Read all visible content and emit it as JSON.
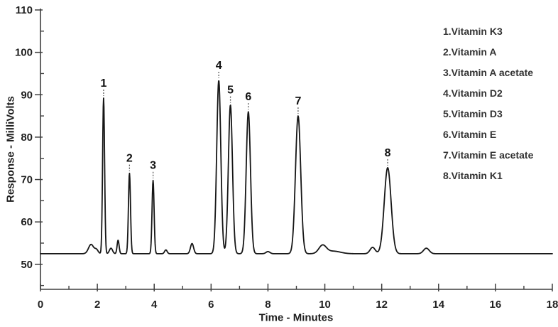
{
  "colors": {
    "background": "#ffffff",
    "trace": "#161616",
    "axis": "#3f3f3f",
    "tick_label": "#1f1f1f",
    "axis_title": "#1d1d1d",
    "peak_label": "#111111",
    "peak_dash": "#555555",
    "legend_text": "#333333"
  },
  "chart_data": {
    "type": "line",
    "subtype": "chromatogram",
    "title": "",
    "xlabel": "Time - Minutes",
    "ylabel": "Response - MilliVolts",
    "xlim": [
      0,
      18
    ],
    "ylim": [
      44.1,
      110
    ],
    "x_major_ticks": [
      0,
      2,
      4,
      6,
      8,
      10,
      12,
      14,
      16,
      18
    ],
    "x_minor_ticks": [
      1,
      3,
      5,
      7,
      9,
      11,
      13,
      15,
      17
    ],
    "y_major_ticks": [
      50,
      60,
      70,
      80,
      90,
      100,
      110
    ],
    "y_minor_ticks": [
      45,
      55,
      65,
      75,
      85,
      95,
      105
    ],
    "grid": "off",
    "baseline_mV": 52.5,
    "peaks": [
      {
        "label": "1",
        "name": "Vitamin K3",
        "rt_min": 2.22,
        "apex_mV": 89.2,
        "sigma_min": 0.035
      },
      {
        "label": "2",
        "name": "Vitamin A",
        "rt_min": 3.13,
        "apex_mV": 71.5,
        "sigma_min": 0.036
      },
      {
        "label": "3",
        "name": "Vitamin A acetate",
        "rt_min": 3.96,
        "apex_mV": 69.8,
        "sigma_min": 0.036
      },
      {
        "label": "4",
        "name": "Vitamin D2",
        "rt_min": 6.27,
        "apex_mV": 93.4,
        "sigma_min": 0.072
      },
      {
        "label": "5",
        "name": "Vitamin D3",
        "rt_min": 6.68,
        "apex_mV": 87.6,
        "sigma_min": 0.072
      },
      {
        "label": "6",
        "name": "Vitamin E",
        "rt_min": 7.31,
        "apex_mV": 86.0,
        "sigma_min": 0.075
      },
      {
        "label": "7",
        "name": "Vitamin E acetate",
        "rt_min": 9.06,
        "apex_mV": 85.0,
        "sigma_min": 0.092
      },
      {
        "label": "8",
        "name": "Vitamin K1",
        "rt_min": 12.21,
        "apex_mV": 72.8,
        "sigma_min": 0.12
      }
    ],
    "minor_features": [
      {
        "t": 1.78,
        "h": 2.2,
        "s": 0.09
      },
      {
        "t": 1.97,
        "h": 0.9,
        "s": 0.06
      },
      {
        "t": 2.48,
        "h": 1.3,
        "s": 0.055
      },
      {
        "t": 2.73,
        "h": 3.2,
        "s": 0.035
      },
      {
        "t": 4.41,
        "h": 0.9,
        "s": 0.045
      },
      {
        "t": 5.33,
        "h": 2.4,
        "s": 0.055
      },
      {
        "t": 8.0,
        "h": 0.5,
        "s": 0.07
      },
      {
        "t": 9.92,
        "h": 1.9,
        "s": 0.13
      },
      {
        "t": 10.3,
        "h": 0.6,
        "s": 0.25
      },
      {
        "t": 11.68,
        "h": 1.5,
        "s": 0.09
      },
      {
        "t": 13.57,
        "h": 1.3,
        "s": 0.1
      }
    ],
    "legend": {
      "position": "top-right",
      "items": [
        "1.Vitamin K3",
        "2.Vitamin A",
        "3.Vitamin A acetate",
        "4.Vitamin D2",
        "5.Vitamin D3",
        "6.Vitamin E",
        "7.Vitamin E acetate",
        "8.Vitamin K1"
      ]
    }
  }
}
